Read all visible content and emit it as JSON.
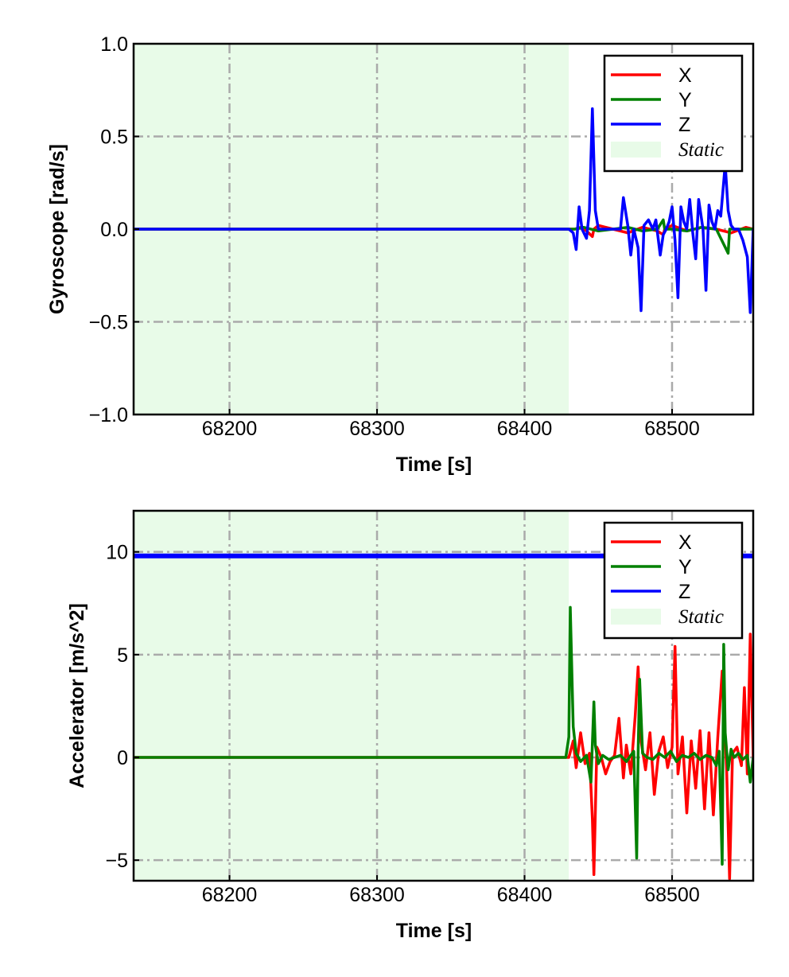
{
  "chart_data": [
    {
      "type": "line",
      "title": "",
      "xlabel": "Time [s]",
      "ylabel": "Gyroscope [rad/s]",
      "xlim": [
        68135,
        68555
      ],
      "ylim": [
        -1.0,
        1.0
      ],
      "xticks": [
        68200,
        68300,
        68400,
        68500
      ],
      "xtick_labels": [
        "68200",
        "68300",
        "68400",
        "68500"
      ],
      "yticks": [
        -1.0,
        -0.5,
        0.0,
        0.5,
        1.0
      ],
      "ytick_labels": [
        "−1.0",
        "−0.5",
        "0.0",
        "0.5",
        "1.0"
      ],
      "grid": true,
      "legend_position": "top-right",
      "static_region": {
        "label": "Static",
        "x_start": 68135,
        "x_end": 68430,
        "color": "#e8fbe8"
      },
      "series": [
        {
          "name": "X",
          "color": "#ff0000",
          "x": [
            68135,
            68434,
            68438,
            68442,
            68446,
            68447,
            68450,
            68460,
            68470,
            68480,
            68490,
            68494,
            68495,
            68500,
            68510,
            68520,
            68530,
            68540,
            68550,
            68555
          ],
          "y": [
            0.0,
            0.0,
            0.01,
            -0.01,
            -0.04,
            0.0,
            0.02,
            0.0,
            -0.02,
            0.01,
            -0.01,
            -0.03,
            0.0,
            0.02,
            -0.01,
            0.01,
            0.0,
            -0.02,
            0.01,
            0.0
          ]
        },
        {
          "name": "Y",
          "color": "#008000",
          "x": [
            68135,
            68434,
            68440,
            68450,
            68460,
            68470,
            68480,
            68490,
            68494,
            68495,
            68500,
            68510,
            68520,
            68530,
            68538,
            68539,
            68540,
            68550,
            68555
          ],
          "y": [
            0.0,
            0.0,
            0.01,
            -0.01,
            0.0,
            0.01,
            -0.01,
            0.0,
            0.05,
            0.0,
            0.0,
            -0.01,
            0.01,
            0.0,
            -0.13,
            0.0,
            0.0,
            0.0,
            0.0
          ]
        },
        {
          "name": "Z",
          "color": "#0000ff",
          "x": [
            68135,
            68430,
            68433,
            68435,
            68437,
            68439,
            68442,
            68444,
            68446,
            68448,
            68450,
            68453,
            68465,
            68467,
            68470,
            68472,
            68474,
            68477,
            68479,
            68481,
            68484,
            68487,
            68489,
            68492,
            68494,
            68496,
            68498,
            68500,
            68502,
            68504,
            68506,
            68508,
            68510,
            68512,
            68514,
            68516,
            68518,
            68521,
            68523,
            68525,
            68527,
            68529,
            68531,
            68533,
            68536,
            68538,
            68540,
            68542,
            68545,
            68548,
            68551,
            68553,
            68555
          ],
          "y": [
            0.0,
            0.0,
            -0.02,
            -0.11,
            0.12,
            0.0,
            -0.05,
            0.1,
            0.65,
            0.1,
            0.0,
            0.0,
            0.0,
            0.17,
            0.02,
            -0.14,
            0.0,
            -0.1,
            -0.44,
            0.02,
            0.05,
            0.0,
            0.05,
            -0.14,
            -0.03,
            0.0,
            0.04,
            0.12,
            -0.06,
            -0.37,
            0.12,
            0.04,
            0.0,
            0.16,
            -0.02,
            -0.16,
            0.16,
            0.0,
            -0.33,
            0.13,
            0.04,
            0.0,
            0.1,
            0.07,
            0.35,
            0.1,
            0.02,
            0.0,
            0.0,
            -0.06,
            -0.15,
            -0.45,
            0.0
          ]
        }
      ]
    },
    {
      "type": "line",
      "title": "",
      "xlabel": "Time [s]",
      "ylabel": "Accelerator [m/s^2]",
      "xlim": [
        68135,
        68555
      ],
      "ylim": [
        -6.0,
        12.0
      ],
      "xticks": [
        68200,
        68300,
        68400,
        68500
      ],
      "xtick_labels": [
        "68200",
        "68300",
        "68400",
        "68500"
      ],
      "yticks": [
        -5,
        0,
        5,
        10
      ],
      "ytick_labels": [
        "−5",
        "0",
        "5",
        "10"
      ],
      "grid": true,
      "legend_position": "top-right",
      "static_region": {
        "label": "Static",
        "x_start": 68135,
        "x_end": 68430,
        "color": "#e8fbe8"
      },
      "series": [
        {
          "name": "X",
          "color": "#ff0000",
          "x": [
            68135,
            68430,
            68433,
            68435,
            68438,
            68441,
            68444,
            68446,
            68447,
            68449,
            68452,
            68455,
            68458,
            68461,
            68464,
            68467,
            68469,
            68472,
            68475,
            68477,
            68479,
            68482,
            68485,
            68488,
            68491,
            68494,
            68497,
            68500,
            68502,
            68504,
            68507,
            68510,
            68513,
            68516,
            68519,
            68522,
            68525,
            68528,
            68531,
            68534,
            68537,
            68539,
            68541,
            68544,
            68547,
            68549,
            68551,
            68553,
            68555
          ],
          "y": [
            0.0,
            0.0,
            0.8,
            -0.5,
            1.2,
            -0.3,
            0.2,
            -3.0,
            -5.7,
            0.5,
            0.0,
            -0.8,
            -0.2,
            0.1,
            1.9,
            -1.0,
            0.6,
            -0.8,
            2.0,
            4.4,
            0.8,
            -0.6,
            1.2,
            -1.8,
            0.3,
            1.0,
            -0.5,
            0.5,
            5.4,
            -0.8,
            1.0,
            -2.7,
            0.8,
            -1.5,
            1.3,
            -2.5,
            1.2,
            -2.8,
            1.0,
            4.2,
            -0.6,
            -5.9,
            0.2,
            0.5,
            -0.4,
            3.4,
            -0.8,
            6.0,
            0.0
          ]
        },
        {
          "name": "Y",
          "color": "#008000",
          "x": [
            68135,
            68428,
            68430,
            68431,
            68433,
            68435,
            68438,
            68442,
            68445,
            68447,
            68448,
            68450,
            68453,
            68457,
            68461,
            68465,
            68469,
            68472,
            68474,
            68476,
            68477,
            68478,
            68480,
            68483,
            68487,
            68491,
            68495,
            68499,
            68503,
            68507,
            68511,
            68515,
            68519,
            68523,
            68527,
            68530,
            68532,
            68534,
            68535,
            68536,
            68538,
            68540,
            68542,
            68545,
            68548,
            68551,
            68553,
            68555
          ],
          "y": [
            0.0,
            0.0,
            1.0,
            7.3,
            1.5,
            0.2,
            -0.2,
            0.1,
            -1.2,
            2.7,
            0.6,
            -0.3,
            0.1,
            -0.1,
            0.0,
            0.1,
            -0.2,
            0.1,
            0.3,
            -4.9,
            0.2,
            3.8,
            0.2,
            0.0,
            -0.1,
            0.2,
            0.0,
            0.3,
            -0.2,
            0.1,
            0.0,
            0.2,
            -0.1,
            0.1,
            0.0,
            -0.4,
            0.3,
            -5.2,
            5.5,
            1.2,
            -0.6,
            0.4,
            0.0,
            0.2,
            -0.1,
            0.1,
            -1.2,
            0.0
          ]
        },
        {
          "name": "Z",
          "color": "#0000ff",
          "x": [
            68135,
            68555
          ],
          "y": [
            9.8,
            9.8
          ]
        }
      ]
    }
  ]
}
